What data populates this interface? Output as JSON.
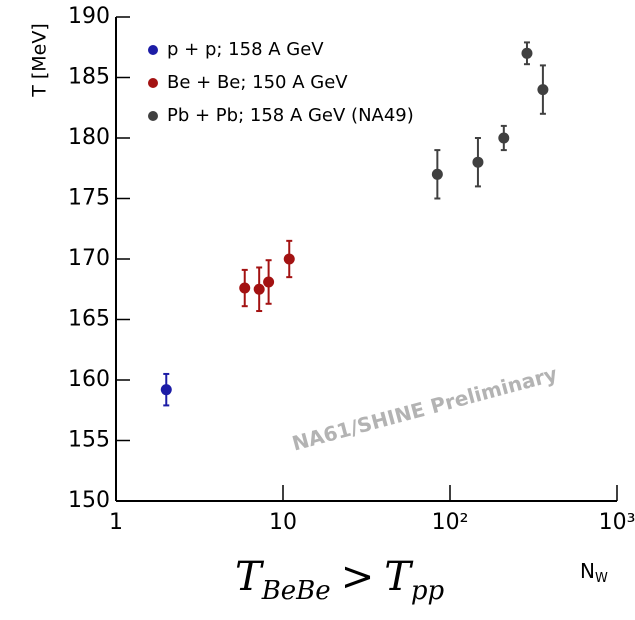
{
  "chart_data": {
    "type": "scatter",
    "ylabel": "T [MeV]",
    "xlabel": {
      "main": "N",
      "sub": "W"
    },
    "xscale": "log",
    "xlim": [
      1,
      1000
    ],
    "ylim": [
      150,
      190
    ],
    "xticks": [
      1,
      10,
      {
        "value": 100,
        "label": "10²"
      },
      {
        "value": 1000,
        "label": "10³"
      }
    ],
    "yticks": [
      150,
      155,
      160,
      165,
      170,
      175,
      180,
      185,
      190
    ],
    "legend": "top-left",
    "watermark": "NA61/SHINE Preliminary",
    "formula": {
      "lhs": "T",
      "lhs_sub": "BeBe",
      "op": ">",
      "rhs": "T",
      "rhs_sub": "pp"
    },
    "series": [
      {
        "name": "p + p; 158 A GeV",
        "color": "#1c1ca6",
        "x": [
          2
        ],
        "values": [
          159.2
        ],
        "errors": [
          1.3
        ]
      },
      {
        "name": "Be + Be; 150 A GeV",
        "color": "#a31212",
        "x": [
          5.9,
          7.2,
          8.2,
          10.9
        ],
        "values": [
          167.6,
          167.5,
          168.1,
          170.0
        ],
        "errors": [
          1.5,
          1.8,
          1.8,
          1.5
        ]
      },
      {
        "name": "Pb + Pb; 158 A GeV (NA49)",
        "color": "#404040",
        "x": [
          84,
          147,
          210,
          289,
          360
        ],
        "values": [
          177,
          178,
          180,
          187,
          184
        ],
        "errors": [
          2,
          2,
          1,
          0.9,
          2
        ]
      }
    ]
  }
}
